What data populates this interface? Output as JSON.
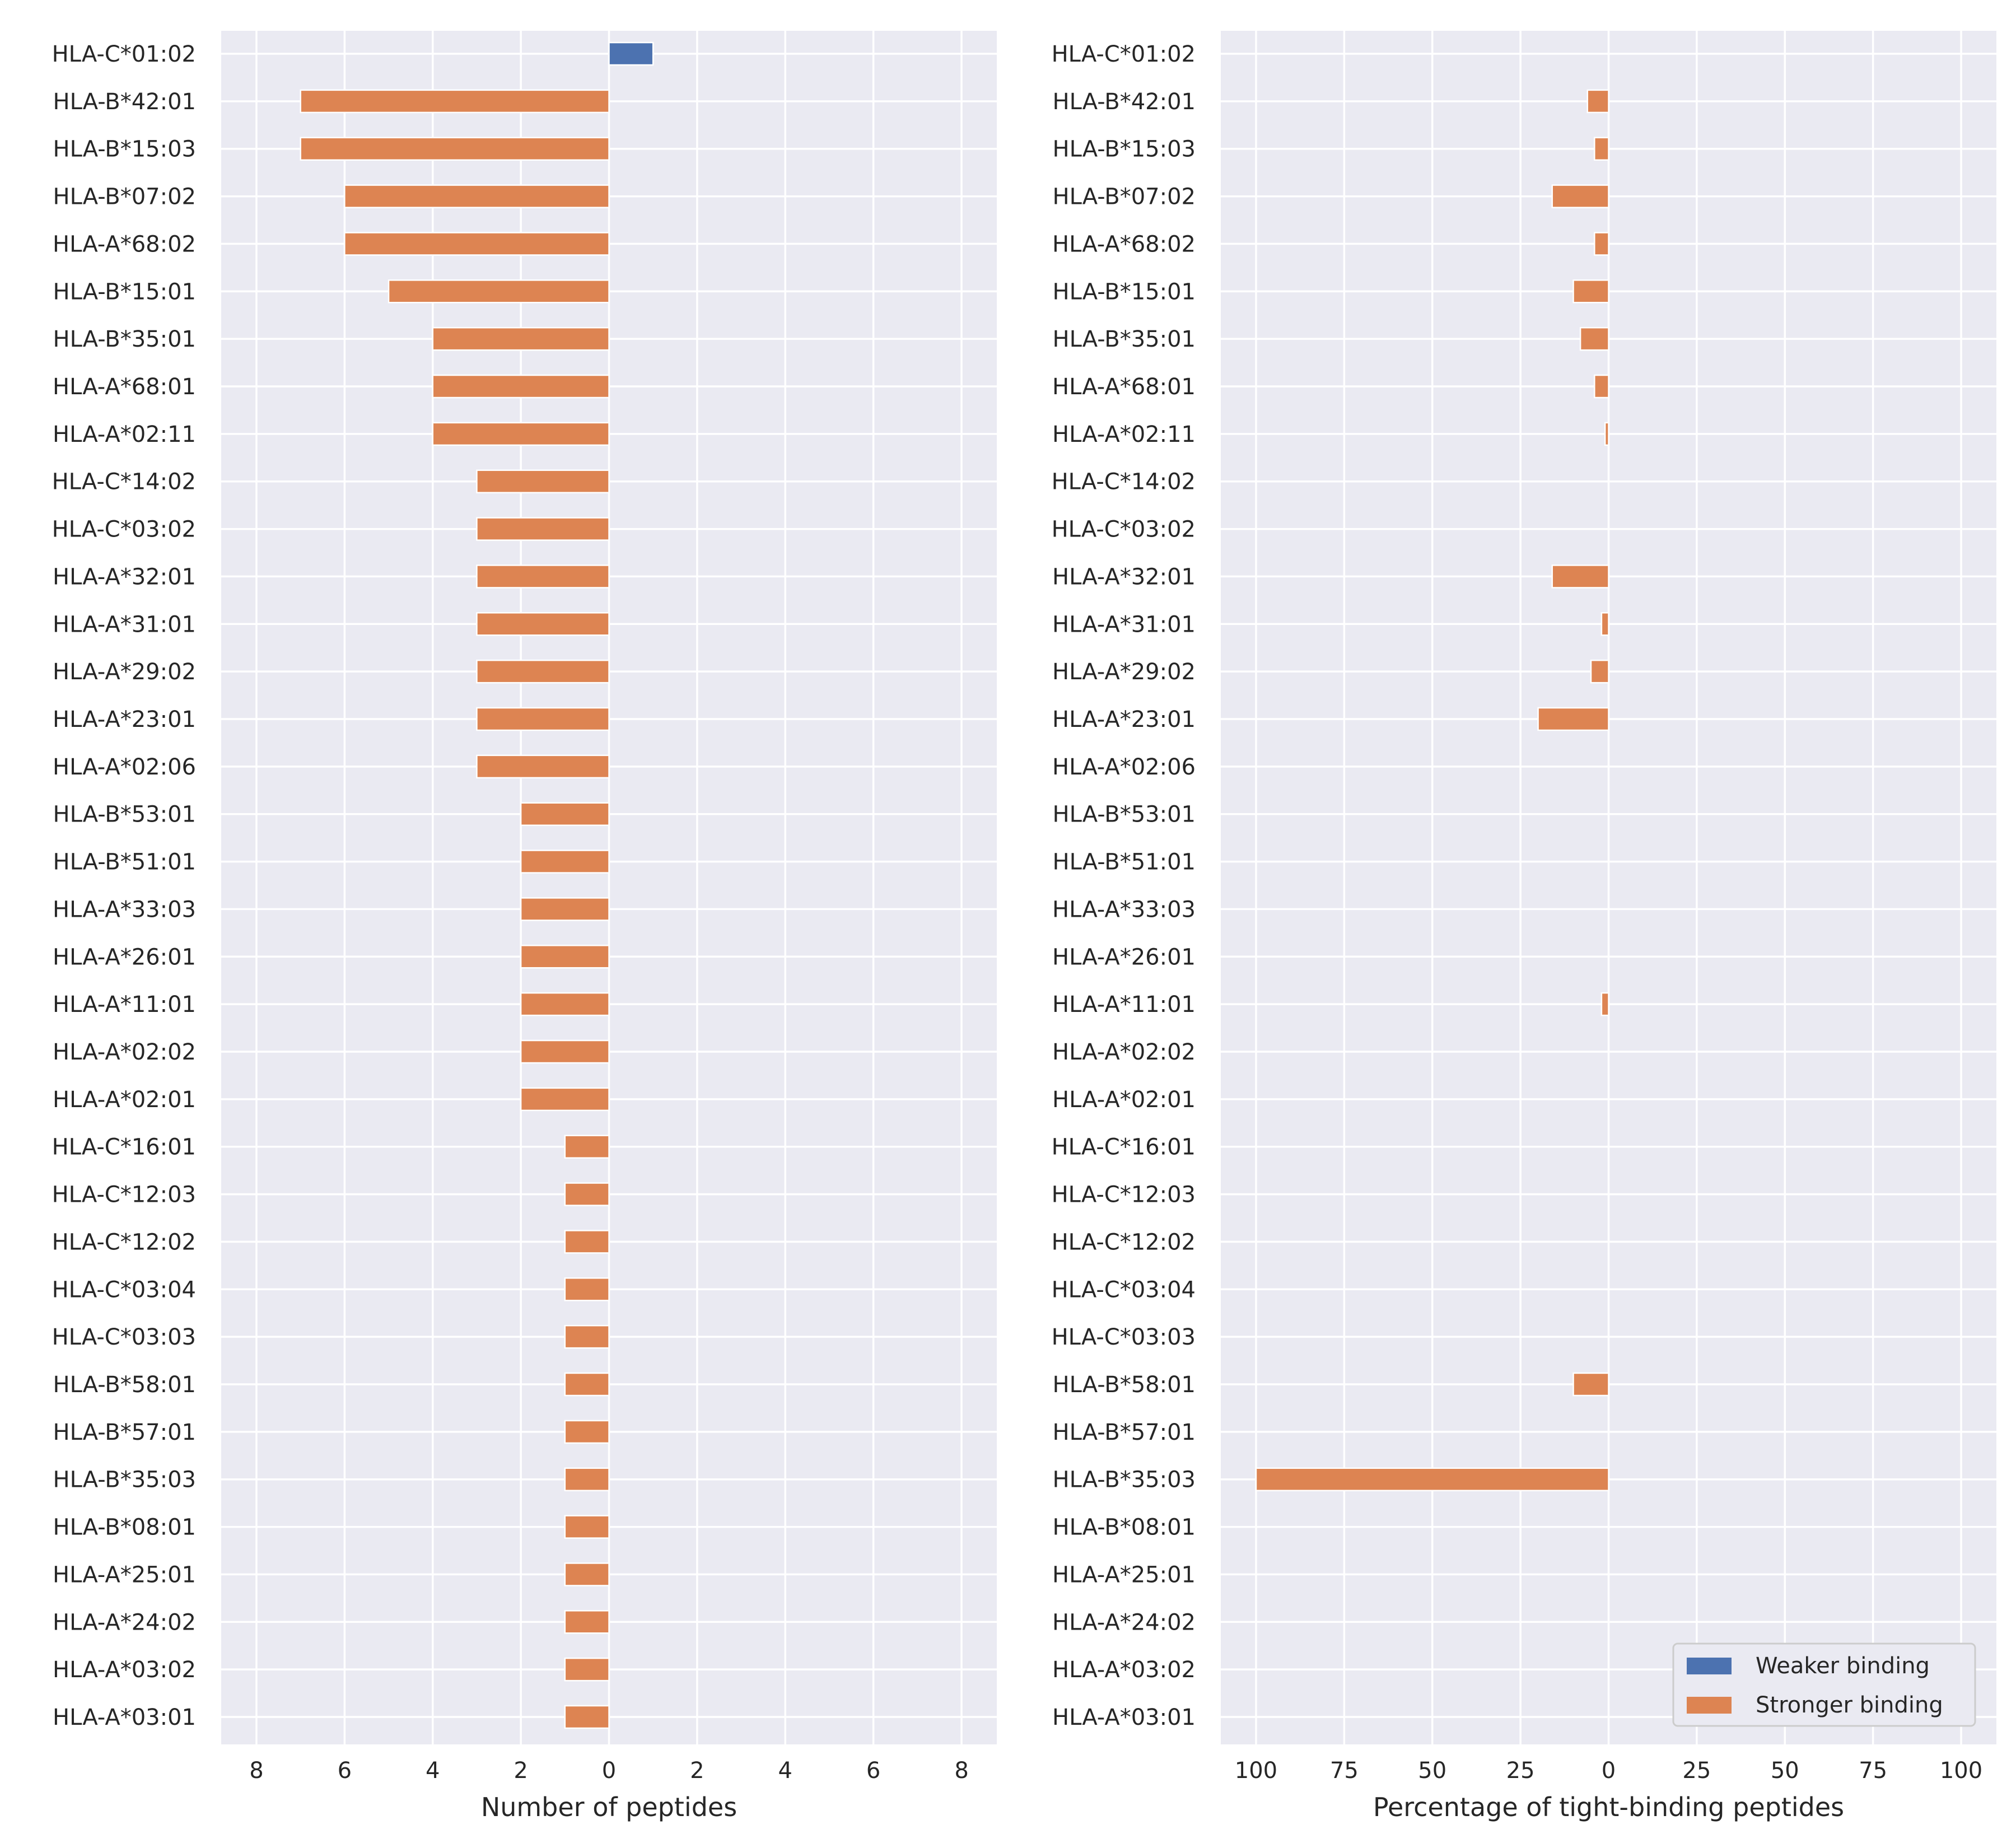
{
  "colors": {
    "weaker": "#4c72b0",
    "stronger": "#dd8452",
    "panel_background": "#eaeaf2",
    "grid": "#ffffff",
    "text": "#262626"
  },
  "chart_data": [
    {
      "type": "bar",
      "orientation": "horizontal",
      "xlabel": "Number of peptides",
      "ylabel": "",
      "xlim": [
        -8.8,
        8.8
      ],
      "xticks": [
        -8,
        -6,
        -4,
        -2,
        0,
        2,
        4,
        6,
        8
      ],
      "xtick_labels": [
        "8",
        "6",
        "4",
        "2",
        "0",
        "2",
        "4",
        "6",
        "8"
      ],
      "grid": true,
      "categories": [
        "HLA-C*01:02",
        "HLA-B*42:01",
        "HLA-B*15:03",
        "HLA-B*07:02",
        "HLA-A*68:02",
        "HLA-B*15:01",
        "HLA-B*35:01",
        "HLA-A*68:01",
        "HLA-A*02:11",
        "HLA-C*14:02",
        "HLA-C*03:02",
        "HLA-A*32:01",
        "HLA-A*31:01",
        "HLA-A*29:02",
        "HLA-A*23:01",
        "HLA-A*02:06",
        "HLA-B*53:01",
        "HLA-B*51:01",
        "HLA-A*33:03",
        "HLA-A*26:01",
        "HLA-A*11:01",
        "HLA-A*02:02",
        "HLA-A*02:01",
        "HLA-C*16:01",
        "HLA-C*12:03",
        "HLA-C*12:02",
        "HLA-C*03:04",
        "HLA-C*03:03",
        "HLA-B*58:01",
        "HLA-B*57:01",
        "HLA-B*35:03",
        "HLA-B*08:01",
        "HLA-A*25:01",
        "HLA-A*24:02",
        "HLA-A*03:02",
        "HLA-A*03:01"
      ],
      "series": [
        {
          "name": "Weaker binding",
          "color": "#4c72b0",
          "values": [
            1,
            0,
            0,
            0,
            0,
            0,
            0,
            0,
            0,
            0,
            0,
            0,
            0,
            0,
            0,
            0,
            0,
            0,
            0,
            0,
            0,
            0,
            0,
            0,
            0,
            0,
            0,
            0,
            0,
            0,
            0,
            0,
            0,
            0,
            0,
            0
          ]
        },
        {
          "name": "Stronger binding",
          "color": "#dd8452",
          "values": [
            0,
            -7,
            -7,
            -6,
            -6,
            -5,
            -4,
            -4,
            -4,
            -3,
            -3,
            -3,
            -3,
            -3,
            -3,
            -3,
            -2,
            -2,
            -2,
            -2,
            -2,
            -2,
            -2,
            -1,
            -1,
            -1,
            -1,
            -1,
            -1,
            -1,
            -1,
            -1,
            -1,
            -1,
            -1,
            -1
          ]
        }
      ]
    },
    {
      "type": "bar",
      "orientation": "horizontal",
      "xlabel": "Percentage of tight-binding peptides",
      "ylabel": "",
      "xlim": [
        -110,
        110
      ],
      "xticks": [
        -100,
        -75,
        -50,
        -25,
        0,
        25,
        50,
        75,
        100
      ],
      "xtick_labels": [
        "100",
        "75",
        "50",
        "25",
        "0",
        "25",
        "50",
        "75",
        "100"
      ],
      "grid": true,
      "legend_position": "bottom-right",
      "categories": [
        "HLA-C*01:02",
        "HLA-B*42:01",
        "HLA-B*15:03",
        "HLA-B*07:02",
        "HLA-A*68:02",
        "HLA-B*15:01",
        "HLA-B*35:01",
        "HLA-A*68:01",
        "HLA-A*02:11",
        "HLA-C*14:02",
        "HLA-C*03:02",
        "HLA-A*32:01",
        "HLA-A*31:01",
        "HLA-A*29:02",
        "HLA-A*23:01",
        "HLA-A*02:06",
        "HLA-B*53:01",
        "HLA-B*51:01",
        "HLA-A*33:03",
        "HLA-A*26:01",
        "HLA-A*11:01",
        "HLA-A*02:02",
        "HLA-A*02:01",
        "HLA-C*16:01",
        "HLA-C*12:03",
        "HLA-C*12:02",
        "HLA-C*03:04",
        "HLA-C*03:03",
        "HLA-B*58:01",
        "HLA-B*57:01",
        "HLA-B*35:03",
        "HLA-B*08:01",
        "HLA-A*25:01",
        "HLA-A*24:02",
        "HLA-A*03:02",
        "HLA-A*03:01"
      ],
      "series": [
        {
          "name": "Weaker binding",
          "color": "#4c72b0",
          "values": [
            0,
            0,
            0,
            0,
            0,
            0,
            0,
            0,
            0,
            0,
            0,
            0,
            0,
            0,
            0,
            0,
            0,
            0,
            0,
            0,
            0,
            0,
            0,
            0,
            0,
            0,
            0,
            0,
            0,
            0,
            0,
            0,
            0,
            0,
            0,
            0
          ]
        },
        {
          "name": "Stronger binding",
          "color": "#dd8452",
          "values": [
            0,
            -6,
            -4,
            -16,
            -4,
            -10,
            -8,
            -4,
            -1,
            0,
            0,
            -16,
            -2,
            -5,
            -20,
            0,
            0,
            0,
            0,
            0,
            -2,
            0,
            0,
            0,
            0,
            0,
            0,
            0,
            -10,
            0,
            -100,
            0,
            0,
            0,
            0,
            0
          ]
        }
      ]
    }
  ],
  "legend": {
    "entries": [
      "Weaker binding",
      "Stronger binding"
    ]
  }
}
